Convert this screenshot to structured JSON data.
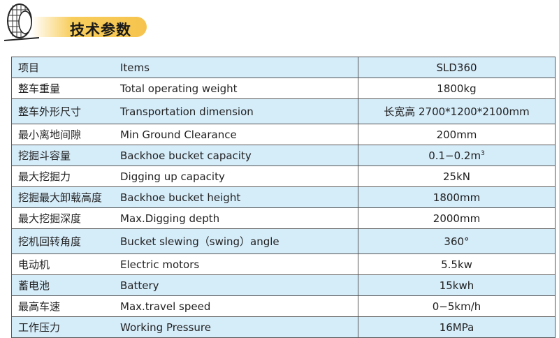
{
  "header": {
    "title": "技术参数",
    "icon": "tire-icon",
    "accent": "#f6c44e"
  },
  "table": {
    "header": {
      "cn": "项目",
      "en": "Items",
      "model": "SLD360"
    },
    "rows": [
      {
        "cn": "整车重量",
        "en": "Total operating weight",
        "value": "1800kg"
      },
      {
        "cn": "整车外形尺寸",
        "en": "Transportation dimension",
        "value": "长宽高 2700*1200*2100mm"
      },
      {
        "cn": "最小离地间隙",
        "en": "Min Ground Clearance",
        "value": "200mm"
      },
      {
        "cn": "挖掘斗容量",
        "en": "Backhoe bucket capacity",
        "value": "0.1−0.2m",
        "value_sup": "3"
      },
      {
        "cn": "最大挖掘力",
        "en": "Digging up capacity",
        "value": "25kN"
      },
      {
        "cn": "挖掘最大卸载高度",
        "en": "Backhoe bucket height",
        "value": "1800mm"
      },
      {
        "cn": "最大挖掘深度",
        "en": "Max.Digging depth",
        "value": "2000mm"
      },
      {
        "cn": "挖机回转角度",
        "en": "Bucket slewing（swing）angle",
        "value": "360°"
      },
      {
        "cn": "电动机",
        "en": "Electric motors",
        "value": "5.5kw"
      },
      {
        "cn": "蓄电池",
        "en": "Battery",
        "value": "15kwh"
      },
      {
        "cn": "最高车速",
        "en": "Max.travel speed",
        "value": "0−5km/h"
      },
      {
        "cn": "工作压力",
        "en": "Working Pressure",
        "value": "16MPa"
      }
    ],
    "row_color": "#d5ecf9"
  }
}
